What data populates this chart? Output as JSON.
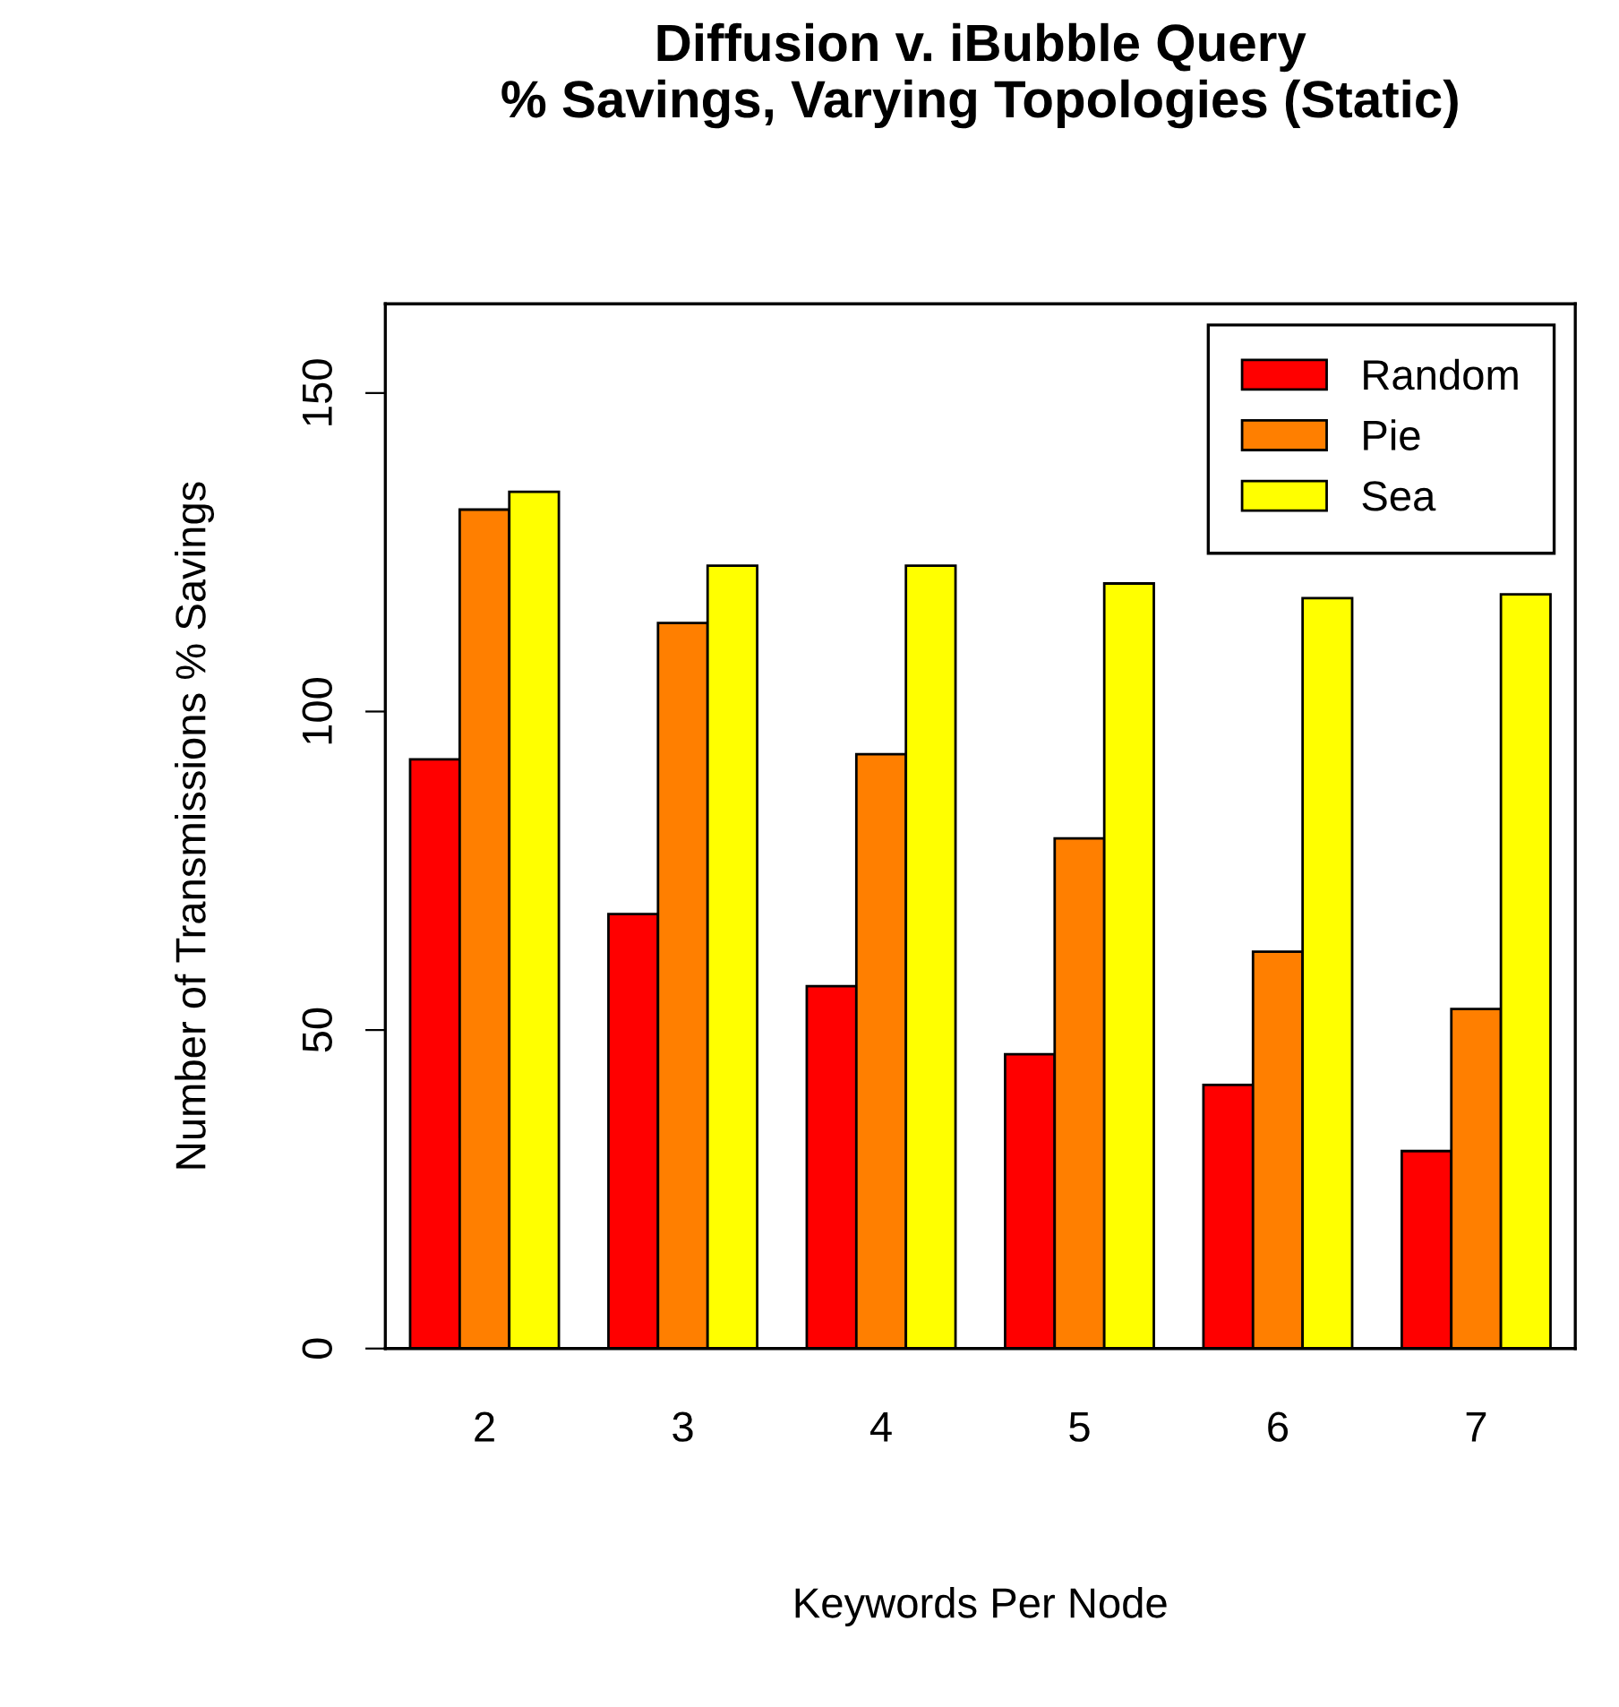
{
  "chart_data": {
    "type": "bar",
    "title": "Diffusion v. iBubble Query\n% Savings, Varying Topologies (Static)",
    "xlabel": "Keywords Per Node",
    "ylabel": "Number of Transmissions % Savings",
    "categories": [
      "2",
      "3",
      "4",
      "5",
      "6",
      "7"
    ],
    "series": [
      {
        "name": "Random",
        "color": "#ff0000",
        "values": [
          92.5,
          68.2,
          56.9,
          46.2,
          41.4,
          31.0
        ]
      },
      {
        "name": "Pie",
        "color": "#ff7f00",
        "values": [
          131.7,
          113.9,
          93.3,
          80.1,
          62.3,
          53.3
        ]
      },
      {
        "name": "Sea",
        "color": "#ffff00",
        "values": [
          134.5,
          122.9,
          122.9,
          120.1,
          117.8,
          118.4
        ]
      }
    ],
    "ylim": [
      0,
      164
    ],
    "yticks": [
      0,
      50,
      100,
      150
    ],
    "legend": "top right",
    "grid": false
  }
}
